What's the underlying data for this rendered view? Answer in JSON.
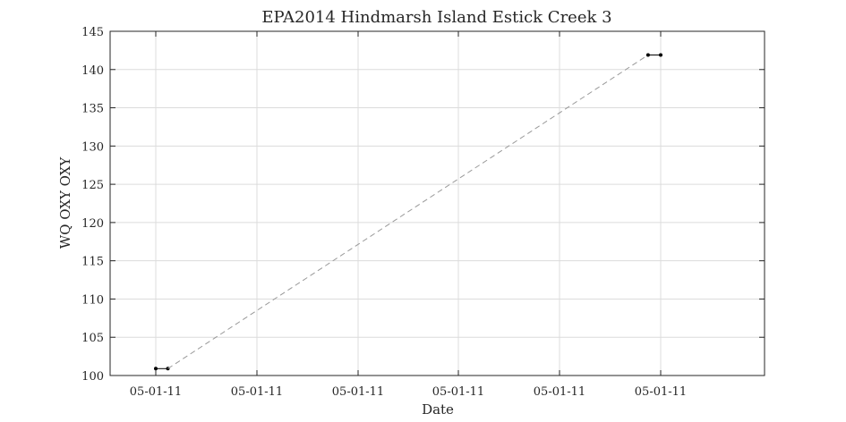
{
  "chart_data": {
    "type": "line",
    "title": "EPA2014 Hindmarsh Island Estick Creek 3",
    "xlabel": "Date",
    "ylabel": "WQ OXY OXY",
    "ylim": [
      100,
      145
    ],
    "yticks": [
      100,
      105,
      110,
      115,
      120,
      125,
      130,
      135,
      140,
      145
    ],
    "xticks": [
      "05-01-11",
      "05-01-11",
      "05-01-11",
      "05-01-11",
      "05-01-11",
      "05-01-11"
    ],
    "grid": true,
    "series": [
      {
        "style": "solid",
        "marker": "dot",
        "color": "#000000",
        "points": [
          {
            "x": 0.0,
            "y": 100.9
          },
          {
            "x": 0.024,
            "y": 100.9
          }
        ]
      },
      {
        "style": "dashed",
        "color": "#999999",
        "points": [
          {
            "x": 0.024,
            "y": 100.9
          },
          {
            "x": 0.975,
            "y": 141.9
          }
        ]
      },
      {
        "style": "solid",
        "marker": "dot",
        "color": "#000000",
        "points": [
          {
            "x": 0.975,
            "y": 141.9
          },
          {
            "x": 1.0,
            "y": 141.9
          }
        ]
      }
    ]
  }
}
